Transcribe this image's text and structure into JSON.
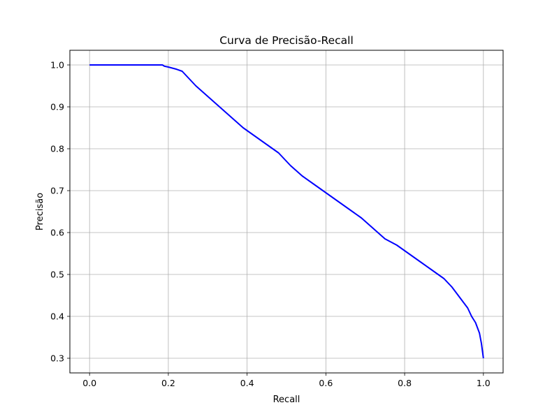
{
  "chart_data": {
    "type": "line",
    "title": "Curva de Precisão-Recall",
    "xlabel": "Recall",
    "ylabel": "Precisão",
    "xlim": [
      -0.05,
      1.05
    ],
    "ylim": [
      0.265,
      1.035
    ],
    "grid": true,
    "x_ticks": [
      0.0,
      0.2,
      0.4,
      0.6,
      0.8,
      1.0
    ],
    "x_tick_labels": [
      "0.0",
      "0.2",
      "0.4",
      "0.6",
      "0.8",
      "1.0"
    ],
    "y_ticks": [
      0.3,
      0.4,
      0.5,
      0.6,
      0.7,
      0.8,
      0.9,
      1.0
    ],
    "y_tick_labels": [
      "0.3",
      "0.4",
      "0.5",
      "0.6",
      "0.7",
      "0.8",
      "0.9",
      "1.0"
    ],
    "line_color": "#0000ff",
    "series": [
      {
        "x": [
          0.0,
          0.05,
          0.1,
          0.15,
          0.185,
          0.19,
          0.2,
          0.22,
          0.235,
          0.25,
          0.27,
          0.3,
          0.33,
          0.36,
          0.39,
          0.42,
          0.45,
          0.48,
          0.51,
          0.54,
          0.57,
          0.6,
          0.63,
          0.66,
          0.69,
          0.72,
          0.75,
          0.78,
          0.81,
          0.84,
          0.87,
          0.9,
          0.92,
          0.94,
          0.96,
          0.97,
          0.98,
          0.99,
          0.995,
          1.0
        ],
        "y": [
          1.0,
          1.0,
          1.0,
          1.0,
          1.0,
          0.997,
          0.995,
          0.99,
          0.985,
          0.97,
          0.95,
          0.925,
          0.9,
          0.875,
          0.85,
          0.83,
          0.81,
          0.79,
          0.76,
          0.735,
          0.715,
          0.695,
          0.675,
          0.655,
          0.635,
          0.61,
          0.585,
          0.57,
          0.55,
          0.53,
          0.51,
          0.49,
          0.47,
          0.445,
          0.42,
          0.4,
          0.385,
          0.36,
          0.335,
          0.3
        ]
      }
    ]
  }
}
